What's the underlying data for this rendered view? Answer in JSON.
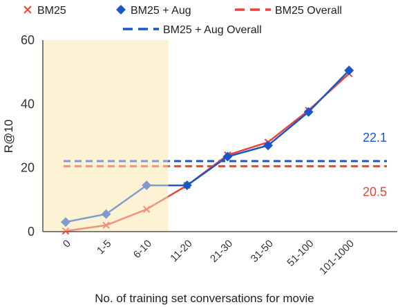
{
  "chart_data": {
    "type": "line",
    "xlabel": "No. of training set conversations for movie",
    "ylabel": "R@10",
    "ylim": [
      0,
      60
    ],
    "yticks": [
      0,
      20,
      40,
      60
    ],
    "categories": [
      "0",
      "1-5",
      "6-10",
      "11-20",
      "21-30",
      "31-50",
      "51-100",
      "101-1000"
    ],
    "series": [
      {
        "name": "BM25",
        "marker": "x",
        "color": "#ea4335",
        "values": [
          0.2,
          2.0,
          7.0,
          14.5,
          24.0,
          28.0,
          38.0,
          49.5
        ]
      },
      {
        "name": "BM25 + Aug",
        "marker": "diamond",
        "color": "#1a56c8",
        "values": [
          3.0,
          5.5,
          14.5,
          14.5,
          23.5,
          27.0,
          37.5,
          50.5
        ]
      }
    ],
    "reference_lines": [
      {
        "name": "BM25 Overall",
        "value": 20.5,
        "label": "20.5",
        "color": "#ea4335"
      },
      {
        "name": "BM25 + Aug Overall",
        "value": 22.1,
        "label": "22.1",
        "color": "#1a56c8"
      }
    ],
    "highlight": {
      "from_category": "0",
      "to_category": "6-10",
      "color": "#fdf2d3"
    },
    "grid": false,
    "legend_position": "top"
  }
}
